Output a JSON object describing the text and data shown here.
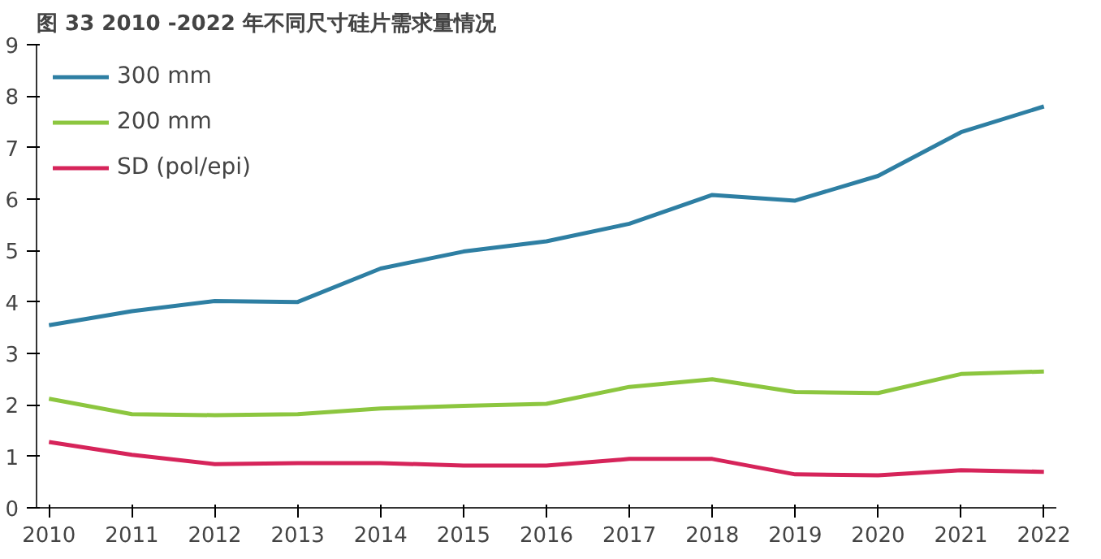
{
  "chart_data": {
    "type": "line",
    "title": "图 33 2010 -2022 年不同尺寸硅片需求量情况",
    "x": [
      2010,
      2011,
      2012,
      2013,
      2014,
      2015,
      2016,
      2017,
      2018,
      2019,
      2020,
      2021,
      2022
    ],
    "series": [
      {
        "name": "300 mm",
        "color": "#2e7fa3",
        "values": [
          3.55,
          3.82,
          4.02,
          4.0,
          4.65,
          4.98,
          5.18,
          5.52,
          6.08,
          5.97,
          6.45,
          7.3,
          7.8
        ]
      },
      {
        "name": "200 mm",
        "color": "#8cc63f",
        "values": [
          2.12,
          1.82,
          1.8,
          1.82,
          1.93,
          1.98,
          2.02,
          2.35,
          2.5,
          2.25,
          2.23,
          2.6,
          2.65
        ]
      },
      {
        "name": "SD (pol/epi)",
        "color": "#d6245a",
        "values": [
          1.28,
          1.03,
          0.85,
          0.87,
          0.87,
          0.82,
          0.82,
          0.95,
          0.95,
          0.65,
          0.63,
          0.73,
          0.7
        ]
      }
    ],
    "xlim": [
      2009.85,
      2022.15
    ],
    "xticks": [
      2010,
      2011,
      2012,
      2013,
      2014,
      2015,
      2016,
      2017,
      2018,
      2019,
      2020,
      2021,
      2022
    ],
    "ylim": [
      0,
      9
    ],
    "yticks": [
      0,
      1,
      2,
      3,
      4,
      5,
      6,
      7,
      8,
      9
    ],
    "grid": false,
    "legend": "top left",
    "marker": "none",
    "line_style": "solid"
  }
}
